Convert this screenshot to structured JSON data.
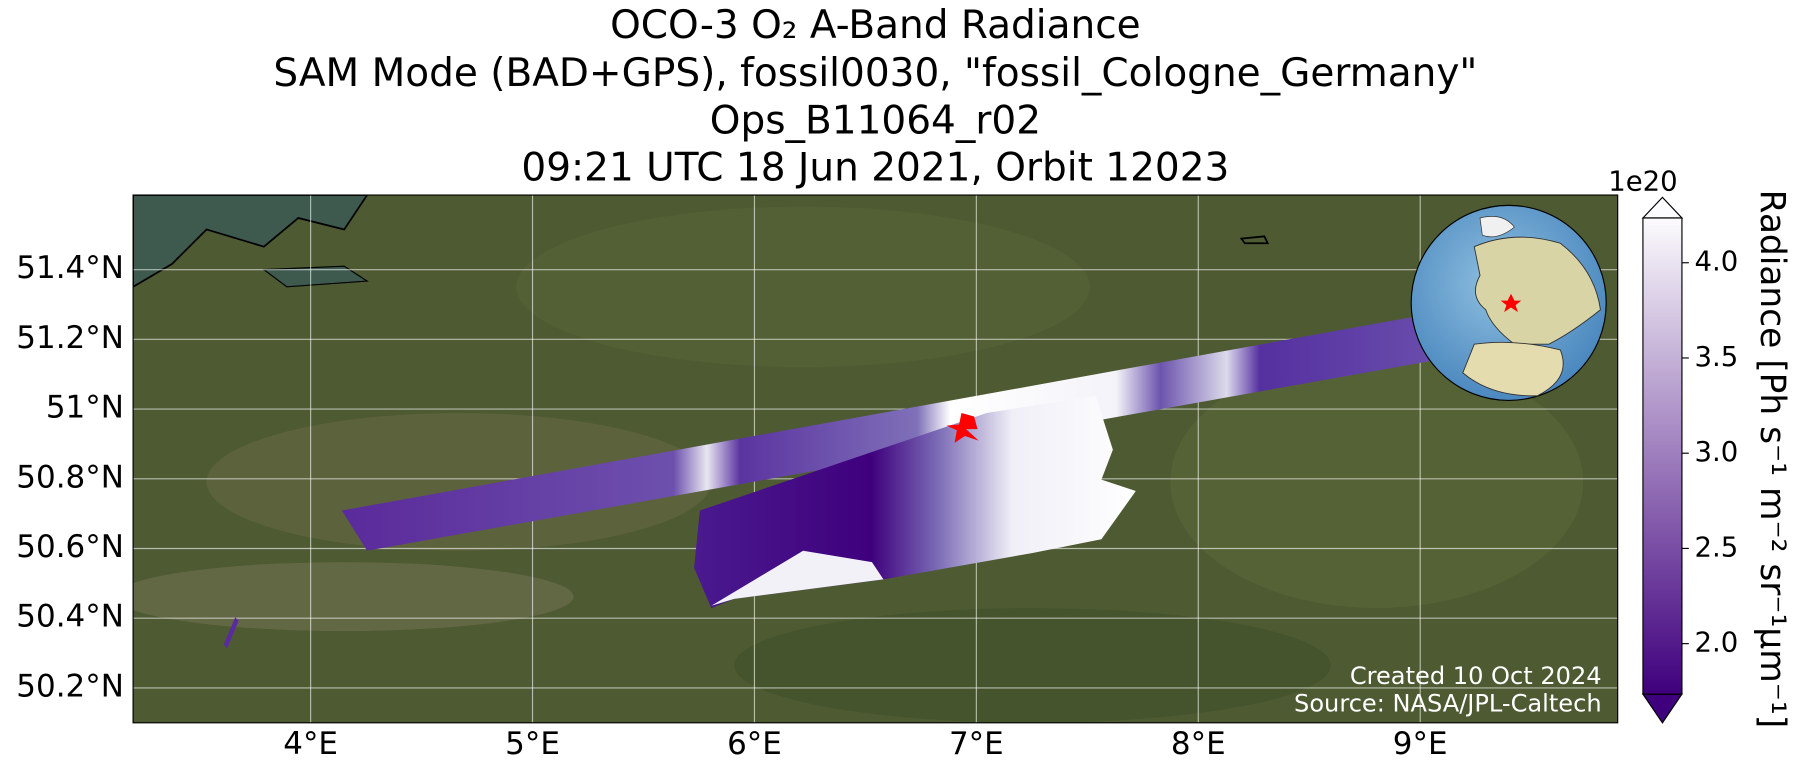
{
  "chart_data": {
    "type": "map",
    "title": "OCO-3 O₂ A-Band Radiance",
    "subtitle": [
      "SAM Mode (BAD+GPS), fossil0030, \"fossil_Cologne_Germany\"",
      "Ops_B11064_r02",
      "09:21 UTC 18 Jun 2021, Orbit 12023"
    ],
    "xlim": [
      3.2,
      9.89
    ],
    "ylim": [
      50.1,
      51.614
    ],
    "xticks": [
      {
        "value": 4,
        "label": "4°E"
      },
      {
        "value": 5,
        "label": "5°E"
      },
      {
        "value": 6,
        "label": "6°E"
      },
      {
        "value": 7,
        "label": "7°E"
      },
      {
        "value": 8,
        "label": "8°E"
      },
      {
        "value": 9,
        "label": "9°E"
      }
    ],
    "yticks": [
      {
        "value": 50.2,
        "label": "50.2°N"
      },
      {
        "value": 50.4,
        "label": "50.4°N"
      },
      {
        "value": 50.6,
        "label": "50.6°N"
      },
      {
        "value": 50.8,
        "label": "50.8°N"
      },
      {
        "value": 51,
        "label": "51°N"
      },
      {
        "value": 51.2,
        "label": "51.2°N"
      },
      {
        "value": 51.4,
        "label": "51.4°N"
      }
    ],
    "grid": true,
    "colorbar": {
      "label": "Radiance [Ph s⁻¹ m⁻² sr⁻¹μm⁻¹]",
      "offset_text": "1e20",
      "lim": [
        1.735,
        4.235
      ],
      "ticks": [
        {
          "value": 2,
          "label": "2.0"
        },
        {
          "value": 2.5,
          "label": "2.5"
        },
        {
          "value": 3,
          "label": "3.0"
        },
        {
          "value": 3.5,
          "label": "3.5"
        },
        {
          "value": 4,
          "label": "4.0"
        }
      ],
      "colors": [
        "#3f007d",
        "#fcfbfd"
      ]
    },
    "annotations": [
      "Created 10 Oct 2024",
      "Source: NASA/JPL-Caltech"
    ]
  }
}
